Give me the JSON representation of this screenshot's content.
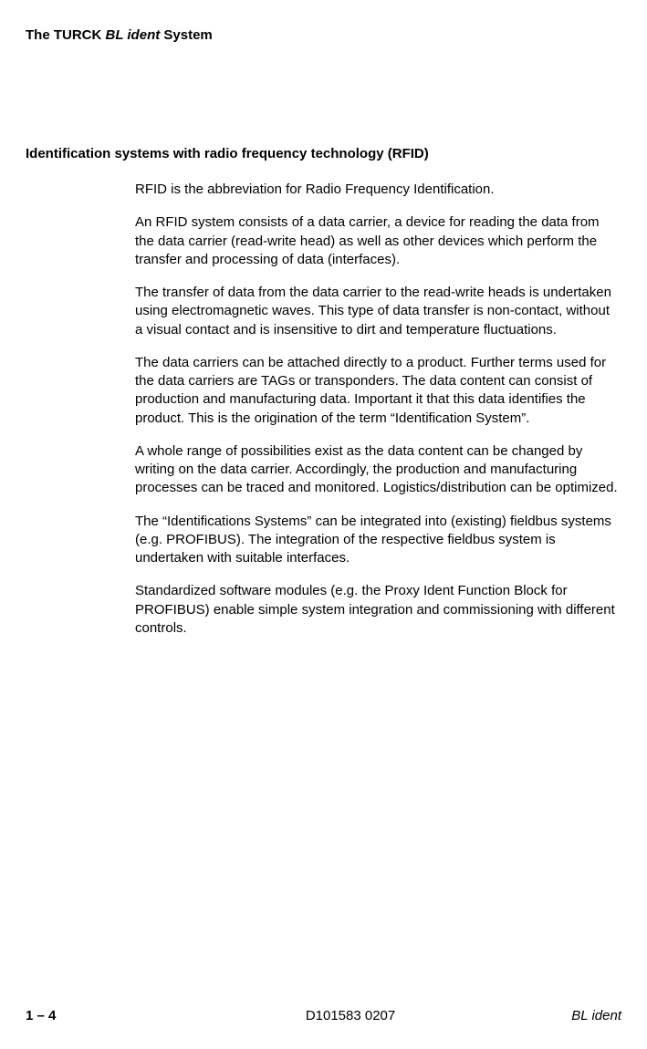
{
  "header": {
    "prefix": "The TURCK ",
    "italic": "BL ident",
    "suffix": " System"
  },
  "section_heading": "Identification systems with radio frequency technology (RFID)",
  "paragraphs": [
    "RFID is the abbreviation for Radio Frequency Identification.",
    "An RFID system consists of a data carrier, a device for reading the data from the data carrier (read-write head) as well as other devices which perform the transfer and processing of data (interfaces).",
    "The transfer of data from the data carrier to the read-write heads is undertaken using electromagnetic waves. This type of data transfer is non-contact, without a visual contact and is insensitive to dirt and temperature fluctuations.",
    "The data carriers can be attached directly to a product. Further terms used for the data carriers are TAGs or transponders. The data content can consist of production and manufacturing data. Important it that this data identifies the product. This is the origination of the term “Identification System”.",
    "A whole range of possibilities exist as the data content can be changed by writing on the data carrier. Accordingly, the production and manufacturing processes can be traced and monitored. Logistics/distribution can be optimized.",
    "The “Identifications Systems” can be integrated into (existing) fieldbus systems (e.g. PROFIBUS). The integration of the respective fieldbus system is undertaken with suitable interfaces.",
    "Standardized software modules (e.g. the Proxy Ident Function Block for PROFIBUS) enable simple system integration and commissioning with different controls."
  ],
  "footer": {
    "left": "1 – 4",
    "center": "D101583 0207",
    "right": "BL ident"
  }
}
